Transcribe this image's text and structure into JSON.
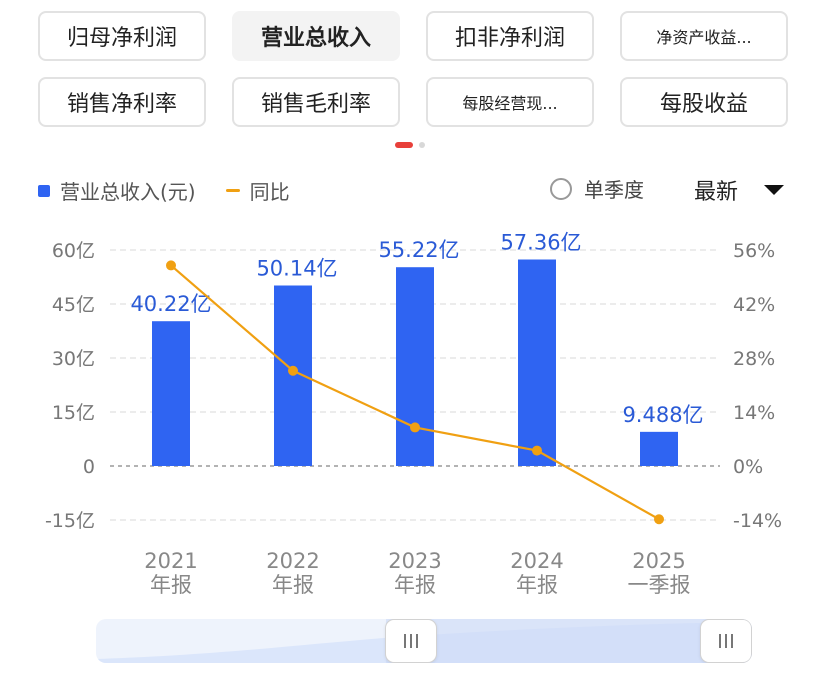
{
  "tabs": [
    {
      "label": "归母净利润",
      "active": false,
      "small": false
    },
    {
      "label": "营业总收入",
      "active": true,
      "small": false
    },
    {
      "label": "扣非净利润",
      "active": false,
      "small": false
    },
    {
      "label": "净资产收益...",
      "active": false,
      "small": true
    },
    {
      "label": "销售净利率",
      "active": false,
      "small": false
    },
    {
      "label": "销售毛利率",
      "active": false,
      "small": false
    },
    {
      "label": "每股经营现...",
      "active": false,
      "small": true
    },
    {
      "label": "每股收益",
      "active": false,
      "small": false
    }
  ],
  "legend": {
    "bar_label": "营业总收入(元)",
    "line_label": "同比"
  },
  "toggle_label": "单季度",
  "period_select": "最新",
  "colors": {
    "bar": "#2f64f2",
    "line": "#f0a012",
    "grid": "#e6e6e6",
    "zero_line": "#9a9a9a"
  },
  "chart_data": {
    "type": "bar",
    "categories": [
      "2021 年报",
      "2022 年报",
      "2023 年报",
      "2024 年报",
      "2025 一季报"
    ],
    "category_lines": [
      [
        "2021",
        "年报"
      ],
      [
        "2022",
        "年报"
      ],
      [
        "2023",
        "年报"
      ],
      [
        "2024",
        "年报"
      ],
      [
        "2025",
        "一季报"
      ]
    ],
    "series": [
      {
        "name": "营业总收入(元)",
        "type": "bar",
        "values": [
          40.22,
          50.14,
          55.22,
          57.36,
          9.488
        ],
        "labels": [
          "40.22亿",
          "50.14亿",
          "55.22亿",
          "57.36亿",
          "9.488亿"
        ]
      },
      {
        "name": "同比",
        "type": "line",
        "axis": "right",
        "values": [
          52,
          24.7,
          10,
          4,
          -13.8
        ]
      }
    ],
    "y_left": {
      "ticks": [
        60,
        45,
        30,
        15,
        0,
        -15
      ],
      "tick_labels": [
        "60亿",
        "45亿",
        "30亿",
        "15亿",
        "0",
        "-15亿"
      ],
      "ylim": [
        -15,
        60
      ]
    },
    "y_right": {
      "ticks": [
        56,
        42,
        28,
        14,
        0,
        -14
      ],
      "tick_labels": [
        "56%",
        "42%",
        "28%",
        "14%",
        "0%",
        "-14%"
      ],
      "ylim": [
        -14,
        56
      ]
    },
    "grid": true,
    "legend_position": "top-left"
  }
}
